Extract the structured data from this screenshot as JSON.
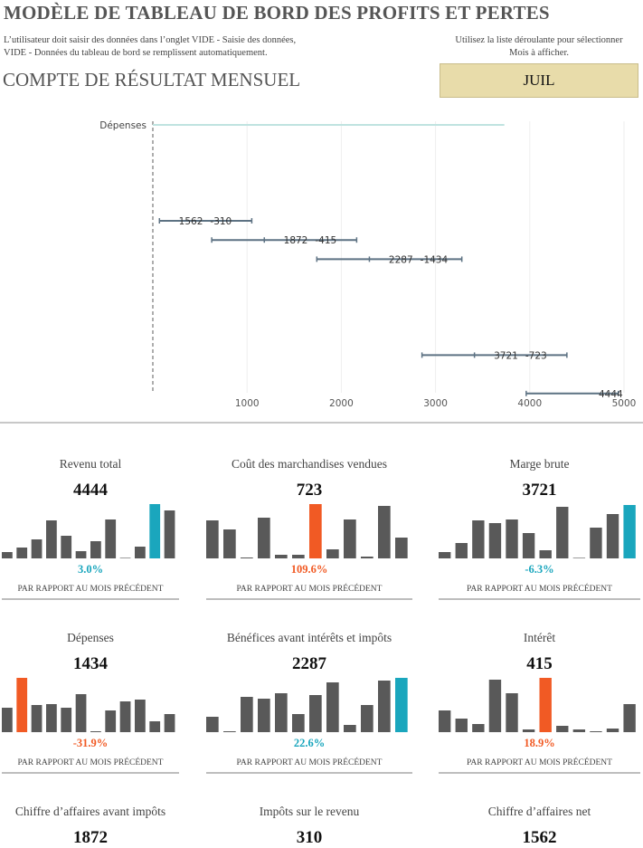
{
  "header": {
    "title": "MODÈLE DE TABLEAU DE BORD DES PROFITS ET PERTES",
    "instructions": [
      "L’utilisateur doit saisir des données dans l’onglet VIDE - Saisie des données,",
      "VIDE - Données du tableau de bord se remplissent automatiquement."
    ],
    "dropdown_hint": [
      "Utilisez la liste déroulante pour sélectionner",
      "Mois à afficher."
    ]
  },
  "section_title": "COMPTE DE RÉSULTAT MENSUEL",
  "month": "JUIL",
  "chart_data": {
    "type": "range",
    "categories": [
      "Dépenses",
      null,
      null,
      null,
      null,
      null,
      null,
      null,
      null,
      null,
      null,
      null,
      null,
      null,
      null
    ],
    "low": [
      0,
      null,
      null,
      null,
      null,
      70,
      625,
      1740,
      null,
      null,
      null,
      null,
      2856,
      null,
      3962
    ],
    "mid": [
      null,
      null,
      null,
      null,
      null,
      null,
      1183,
      2298,
      null,
      null,
      null,
      null,
      3413,
      null,
      null
    ],
    "high": [
      3730,
      null,
      null,
      null,
      null,
      1050,
      2163,
      3279,
      null,
      null,
      null,
      null,
      4394,
      null,
      4940
    ],
    "totals": [
      null,
      null,
      null,
      null,
      null,
      1562,
      1872,
      2287,
      null,
      null,
      null,
      null,
      3721,
      null,
      4444
    ],
    "changes": [
      null,
      null,
      null,
      null,
      null,
      -310,
      -415,
      -1434,
      null,
      null,
      null,
      null,
      -723,
      null,
      null
    ],
    "xlim": [
      0,
      5000
    ],
    "xticks": [
      1000,
      2000,
      3000,
      4000,
      5000
    ],
    "grid": true,
    "color": "#5d7283",
    "first_color": "#bfe3e0"
  },
  "cards": [
    {
      "title": "Revenu total",
      "value": 4444,
      "change": "3.0%",
      "comparison": "PAR RAPPORT AU MOIS PRÉCÉDENT",
      "bars": [
        7,
        12,
        21,
        42,
        25,
        8,
        19,
        43,
        0,
        13,
        60,
        53
      ],
      "highlight": 10,
      "highlight_color": "#1aa6bd"
    },
    {
      "title": "Coût des marchandises vendues",
      "value": 723,
      "change": "109.6%",
      "comparison": "PAR RAPPORT AU MOIS PRÉCÉDENT",
      "bars": [
        42,
        32,
        1,
        45,
        4,
        4,
        60,
        10,
        43,
        2,
        58,
        23
      ],
      "highlight": 6,
      "highlight_color": "#f15a24"
    },
    {
      "title": "Marge brute",
      "value": 3721,
      "change": "-6.3%",
      "comparison": "PAR RAPPORT AU MOIS PRÉCÉDENT",
      "bars": [
        7,
        17,
        42,
        39,
        43,
        28,
        9,
        57,
        0,
        34,
        49,
        59
      ],
      "highlight": 11,
      "highlight_color": "#1aa6bd"
    },
    {
      "title": "Dépenses",
      "value": 1434,
      "change": "-31.9%",
      "comparison": "PAR RAPPORT AU MOIS PRÉCÉDENT",
      "bars": [
        27,
        60,
        30,
        31,
        27,
        42,
        1,
        24,
        34,
        36,
        12,
        20
      ],
      "highlight": 1,
      "highlight_color": "#f15a24"
    },
    {
      "title": "Bénéfices avant intérêts et impôts",
      "value": 2287,
      "change": "22.6%",
      "comparison": "PAR RAPPORT AU MOIS PRÉCÉDENT",
      "bars": [
        17,
        1,
        39,
        37,
        43,
        20,
        41,
        55,
        8,
        30,
        57,
        60
      ],
      "highlight": 11,
      "highlight_color": "#1aa6bd"
    },
    {
      "title": "Intérêt",
      "value": 415,
      "change": "18.9%",
      "comparison": "PAR RAPPORT AU MOIS PRÉCÉDENT",
      "bars": [
        24,
        15,
        9,
        58,
        43,
        3,
        60,
        7,
        3,
        1,
        4,
        31
      ],
      "highlight": 6,
      "highlight_color": "#f15a24"
    },
    {
      "title": "Chiffre d’affaires avant impôts",
      "value": 1872
    },
    {
      "title": "Impôts sur le revenu",
      "value": 310
    },
    {
      "title": "Chiffre d’affaires net",
      "value": 1562
    }
  ]
}
